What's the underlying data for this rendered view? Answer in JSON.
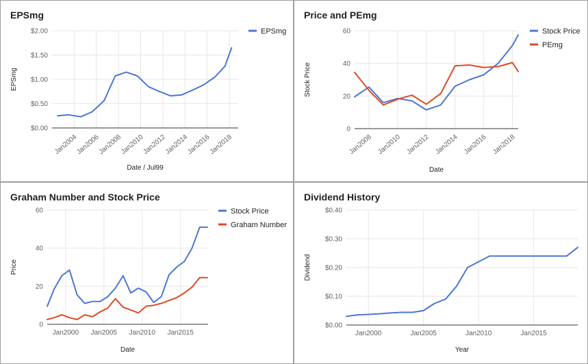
{
  "colors": {
    "blue": "#4a76d4",
    "red": "#dc4a26",
    "grid": "#e6e6e6",
    "axis": "#333333"
  },
  "chart_data": [
    {
      "type": "line",
      "title": "EPSmg",
      "xlabel": "Date / Jul99",
      "ylabel": "EPSmg",
      "xlim": [
        2002.0,
        2018.8
      ],
      "ylim": [
        0,
        2
      ],
      "y_ticks": [
        0,
        0.5,
        1,
        1.5,
        2
      ],
      "y_tick_labels": [
        "$0.00",
        "$0.50",
        "$1.00",
        "$1.50",
        "$2.00"
      ],
      "x_ticks": [
        2004,
        2006,
        2008,
        2010,
        2012,
        2014,
        2016,
        2018
      ],
      "x_tick_labels": [
        "Jan2004",
        "Jan2006",
        "Jan2008",
        "Jan2010",
        "Jan2012",
        "Jan2014",
        "Jan2016",
        "Jan2018"
      ],
      "x_label_rotation": -40,
      "legend_position": "top-right",
      "series": [
        {
          "name": "EPSmg",
          "color": "#4a76d4",
          "x": [
            2002.5,
            2003.5,
            2004.6,
            2005.6,
            2006.7,
            2007.7,
            2008.7,
            2009.7,
            2010.7,
            2011.7,
            2012.7,
            2013.7,
            2014.7,
            2015.7,
            2016.7,
            2017.6,
            2018.2
          ],
          "y": [
            0.25,
            0.27,
            0.23,
            0.33,
            0.56,
            1.07,
            1.15,
            1.07,
            0.85,
            0.75,
            0.66,
            0.68,
            0.78,
            0.89,
            1.05,
            1.27,
            1.65
          ]
        }
      ]
    },
    {
      "type": "line",
      "title": "Price and PEmg",
      "xlabel": "Date",
      "ylabel": "Stock Price",
      "xlim": [
        2007.0,
        2018.4
      ],
      "ylim": [
        0,
        60
      ],
      "y_ticks": [
        0,
        20,
        40,
        60
      ],
      "y_tick_labels": [
        "0",
        "20",
        "40",
        "60"
      ],
      "x_ticks": [
        2008,
        2010,
        2012,
        2014,
        2016,
        2018
      ],
      "x_tick_labels": [
        "Jan2008",
        "Jan2010",
        "Jan2012",
        "Jan2014",
        "Jan2016",
        "Jan2018"
      ],
      "x_label_rotation": -40,
      "legend_position": "top-right",
      "series": [
        {
          "name": "Stock Price",
          "color": "#4a76d4",
          "x": [
            2007.0,
            2008.0,
            2009.0,
            2010.0,
            2011.0,
            2012.0,
            2013.0,
            2014.0,
            2015.0,
            2016.0,
            2017.0,
            2018.0,
            2018.4
          ],
          "y": [
            19.5,
            25.5,
            16,
            18.5,
            17,
            11.5,
            14.5,
            26,
            30,
            33,
            40,
            51,
            57.5
          ]
        },
        {
          "name": "PEmg",
          "color": "#dc4a26",
          "x": [
            2007.0,
            2008.0,
            2009.0,
            2010.0,
            2011.0,
            2012.0,
            2013.0,
            2014.0,
            2015.0,
            2016.0,
            2017.0,
            2018.0,
            2018.4
          ],
          "y": [
            34.5,
            23.5,
            14.5,
            18,
            20.5,
            15,
            21.5,
            38.5,
            39,
            37.5,
            38,
            40.5,
            35
          ]
        }
      ]
    },
    {
      "type": "line",
      "title": "Graham Number and Stock Price",
      "xlabel": "Date",
      "ylabel": "Price",
      "xlim": [
        1997.6,
        2018.6
      ],
      "ylim": [
        0,
        60
      ],
      "y_ticks": [
        0,
        20,
        40,
        60
      ],
      "y_tick_labels": [
        "0",
        "20",
        "40",
        "60"
      ],
      "x_ticks": [
        2000,
        2005,
        2010,
        2015
      ],
      "x_tick_labels": [
        "Jan2000",
        "Jan2005",
        "Jan2010",
        "Jan2015"
      ],
      "x_label_rotation": 0,
      "legend_position": "top-right",
      "series": [
        {
          "name": "Stock Price",
          "color": "#4a76d4",
          "x": [
            1997.6,
            1998.5,
            1999.5,
            2000.5,
            2001.5,
            2002.5,
            2003.5,
            2004.5,
            2005.5,
            2006.5,
            2007.5,
            2008.5,
            2009.5,
            2010.5,
            2011.5,
            2012.5,
            2013.5,
            2014.5,
            2015.5,
            2016.5,
            2017.5,
            2018.5
          ],
          "y": [
            9.5,
            18.5,
            25.5,
            28.5,
            15.5,
            11,
            12,
            12,
            14.5,
            19,
            25.5,
            16.5,
            19,
            17,
            11.5,
            14.5,
            26,
            30,
            33,
            40,
            51,
            51
          ]
        },
        {
          "name": "Graham Number",
          "color": "#dc4a26",
          "x": [
            1997.6,
            1998.5,
            1999.5,
            2000.5,
            2001.5,
            2002.5,
            2003.5,
            2004.5,
            2005.5,
            2006.5,
            2007.5,
            2008.5,
            2009.5,
            2010.5,
            2011.5,
            2012.5,
            2013.5,
            2014.5,
            2015.5,
            2016.5,
            2017.5,
            2018.5
          ],
          "y": [
            2.5,
            3.5,
            5,
            3.5,
            2.5,
            5,
            4,
            6.5,
            8.5,
            13.5,
            9,
            7.5,
            6,
            9.5,
            10,
            11,
            12.5,
            14,
            16.5,
            19.5,
            24.5,
            24.5
          ]
        }
      ]
    },
    {
      "type": "line",
      "title": "Dividend History",
      "xlabel": "Year",
      "ylabel": "Dividend",
      "xlim": [
        1998.0,
        2019.0
      ],
      "ylim": [
        0,
        0.4
      ],
      "y_ticks": [
        0,
        0.1,
        0.2,
        0.3,
        0.4
      ],
      "y_tick_labels": [
        "$0.00",
        "$0.10",
        "$0.20",
        "$0.30",
        "$0.40"
      ],
      "x_ticks": [
        2000,
        2005,
        2010,
        2015
      ],
      "x_tick_labels": [
        "Jan2000",
        "Jan2005",
        "Jan2010",
        "Jan2015"
      ],
      "x_label_rotation": 0,
      "legend_position": "none",
      "series": [
        {
          "name": "",
          "color": "#4a76d4",
          "x": [
            1998.0,
            1999.0,
            2000.0,
            2001.0,
            2002.0,
            2003.0,
            2004.0,
            2005.0,
            2006.0,
            2007.0,
            2008.0,
            2009.0,
            2010.0,
            2011.0,
            2012.0,
            2013.0,
            2014.0,
            2015.0,
            2016.0,
            2017.0,
            2018.0,
            2019.0
          ],
          "y": [
            0.03,
            0.035,
            0.037,
            0.039,
            0.042,
            0.044,
            0.044,
            0.05,
            0.075,
            0.09,
            0.135,
            0.2,
            0.22,
            0.24,
            0.24,
            0.24,
            0.24,
            0.24,
            0.24,
            0.24,
            0.24,
            0.27
          ]
        }
      ]
    }
  ]
}
